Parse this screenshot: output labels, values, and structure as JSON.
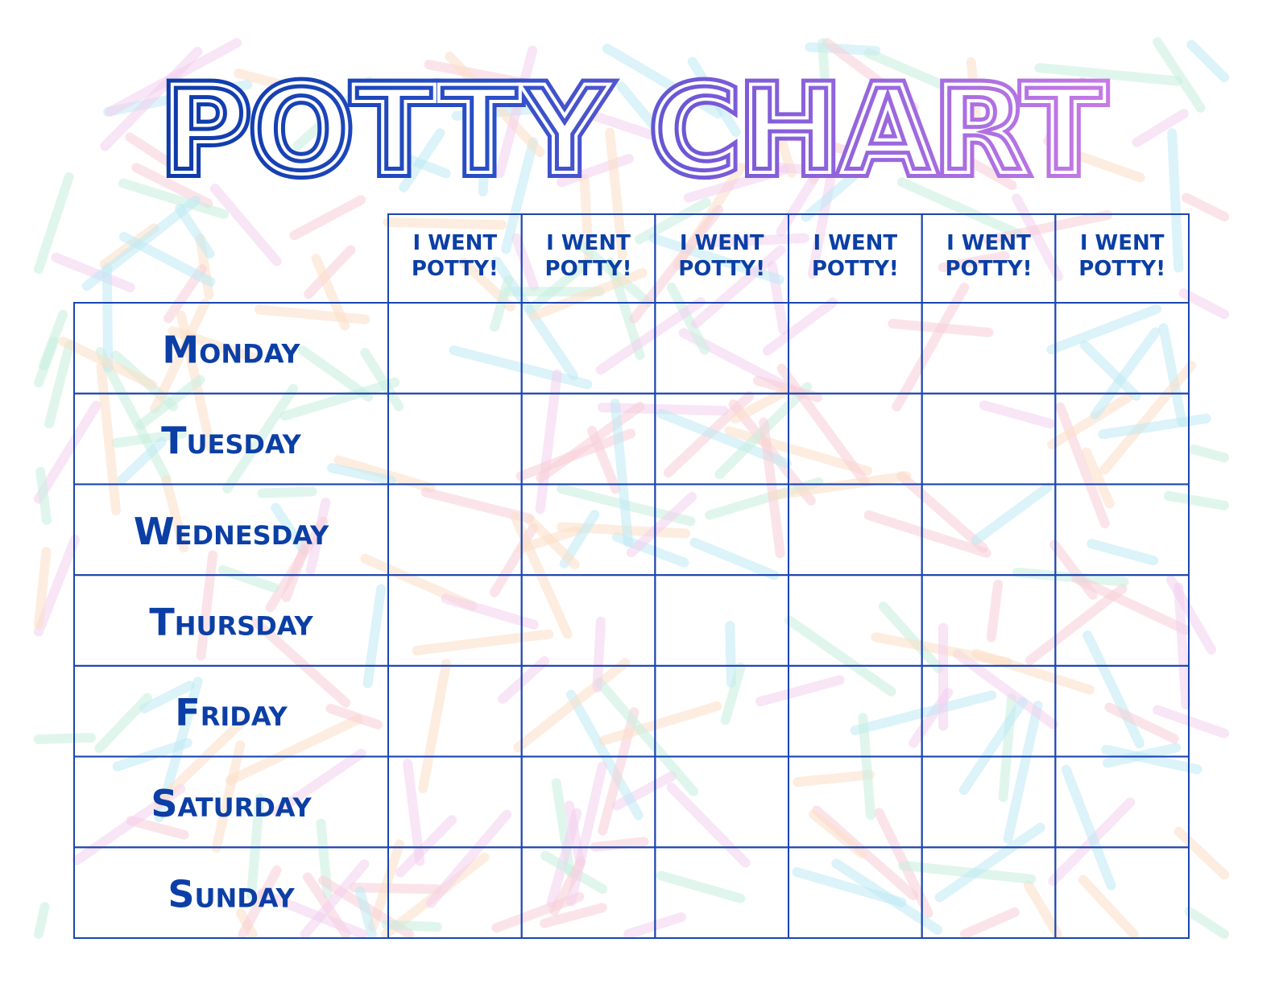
{
  "title": "POTTY CHART",
  "table": {
    "columns": [
      "I WENT POTTY!",
      "I WENT POTTY!",
      "I WENT POTTY!",
      "I WENT POTTY!",
      "I WENT POTTY!",
      "I WENT POTTY!"
    ],
    "rows": [
      "Monday",
      "Tuesday",
      "Wednesday",
      "Thursday",
      "Friday",
      "Saturday",
      "Sunday"
    ]
  }
}
